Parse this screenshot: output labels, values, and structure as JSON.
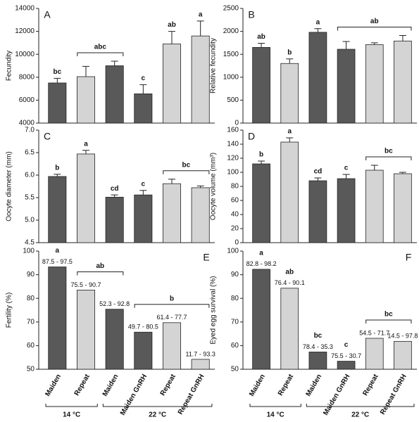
{
  "chart_data": [
    {
      "type": "bar",
      "panel": "A",
      "panel_position": "left",
      "y_label": "Fecundity",
      "categories": [
        null,
        null,
        null,
        null,
        null,
        null
      ],
      "values": [
        7500,
        8050,
        9000,
        6550,
        10900,
        11600
      ],
      "errors": [
        400,
        900,
        400,
        800,
        1100,
        1300
      ],
      "colors": [
        "#595959",
        "#d4d4d4",
        "#595959",
        "#595959",
        "#d4d4d4",
        "#d4d4d4"
      ],
      "letters": [
        "bc",
        null,
        null,
        "c",
        "ab",
        "a"
      ],
      "brackets": [
        {
          "from": 1,
          "to": 2,
          "label": "abc"
        }
      ],
      "ylim": [
        4000,
        14000
      ],
      "yticks": [
        4000,
        6000,
        8000,
        10000,
        12000,
        14000
      ]
    },
    {
      "type": "bar",
      "panel": "B",
      "panel_position": "left",
      "y_label": "Relative fecundity",
      "categories": [
        null,
        null,
        null,
        null,
        null,
        null
      ],
      "values": [
        1650,
        1300,
        1980,
        1610,
        1710,
        1790
      ],
      "errors": [
        90,
        100,
        80,
        170,
        40,
        120
      ],
      "colors": [
        "#595959",
        "#d4d4d4",
        "#595959",
        "#595959",
        "#d4d4d4",
        "#d4d4d4"
      ],
      "letters": [
        "ab",
        "b",
        "a",
        null,
        null,
        null
      ],
      "brackets": [
        {
          "from": 3,
          "to": 5,
          "label": "ab"
        }
      ],
      "ylim": [
        0,
        2500
      ],
      "yticks": [
        0,
        500,
        1000,
        1500,
        2000,
        2500
      ]
    },
    {
      "type": "bar",
      "panel": "C",
      "panel_position": "left",
      "y_label": "Oocyte diameter (mm)",
      "categories": [
        null,
        null,
        null,
        null,
        null,
        null
      ],
      "values": [
        5.97,
        6.47,
        5.51,
        5.56,
        5.81,
        5.72
      ],
      "errors": [
        0.05,
        0.08,
        0.05,
        0.1,
        0.1,
        0.04
      ],
      "colors": [
        "#595959",
        "#d4d4d4",
        "#595959",
        "#595959",
        "#d4d4d4",
        "#d4d4d4"
      ],
      "letters": [
        "b",
        "a",
        "cd",
        "c",
        null,
        null
      ],
      "brackets": [
        {
          "from": 4,
          "to": 5,
          "label": "bc"
        }
      ],
      "ylim": [
        4.5,
        7.0
      ],
      "yticks": [
        4.5,
        {
          "value": 5,
          "label": "5.0"
        },
        5.5,
        {
          "value": 6,
          "label": "6.0"
        },
        6.5,
        {
          "value": 7,
          "label": "7.0"
        }
      ]
    },
    {
      "type": "bar",
      "panel": "D",
      "panel_position": "left",
      "y_label": "Oocyte volume (mm³)",
      "categories": [
        null,
        null,
        null,
        null,
        null,
        null
      ],
      "values": [
        112,
        143,
        88,
        91,
        103,
        98
      ],
      "errors": [
        4,
        6,
        4,
        6,
        7,
        2
      ],
      "colors": [
        "#595959",
        "#d4d4d4",
        "#595959",
        "#595959",
        "#d4d4d4",
        "#d4d4d4"
      ],
      "letters": [
        "b",
        "a",
        "cd",
        "c",
        null,
        null
      ],
      "brackets": [
        {
          "from": 4,
          "to": 5,
          "label": "bc"
        }
      ],
      "ylim": [
        0,
        160
      ],
      "yticks": [
        0,
        20,
        40,
        60,
        80,
        100,
        120,
        140,
        160
      ]
    },
    {
      "type": "bar",
      "panel": "E",
      "panel_position": "right",
      "y_label": "Fertility (%)",
      "categories": [
        "Maiden",
        "Repeat",
        "Maiden",
        "Maiden GnRH",
        "Repeat",
        "Repeat GnRH"
      ],
      "values": [
        93.3,
        83.5,
        75.4,
        65.7,
        69.7,
        54.2
      ],
      "ranges": [
        "87.5 - 97.5",
        "75.5 - 90.7",
        "52.3 - 92.8",
        "49.7 - 80.5",
        "61.4 - 77.7",
        "11.7 - 93.3"
      ],
      "colors": [
        "#595959",
        "#d4d4d4",
        "#595959",
        "#595959",
        "#d4d4d4",
        "#d4d4d4"
      ],
      "letters": [
        "a",
        null,
        null,
        null,
        null,
        null
      ],
      "brackets": [
        {
          "from": 1,
          "to": 2,
          "label": "ab"
        },
        {
          "from": 3,
          "to": 5,
          "label": "b"
        }
      ],
      "groups": [
        {
          "label": "14 °C",
          "from": 0,
          "to": 1
        },
        {
          "label": "22 °C",
          "from": 2,
          "to": 5
        }
      ],
      "ylim": [
        50,
        100
      ],
      "yticks": [
        50,
        60,
        70,
        80,
        90,
        100
      ]
    },
    {
      "type": "bar",
      "panel": "F",
      "panel_position": "right",
      "y_label": "Eyed egg survival (%)",
      "categories": [
        "Maiden",
        "Repeat",
        "Maiden",
        "Maiden GnRH",
        "Repeat",
        "Repeat GnRH"
      ],
      "values": [
        92.3,
        84.3,
        57.3,
        53.4,
        63.1,
        61.8
      ],
      "ranges": [
        "82.8 - 98.2",
        "76.4 - 90.1",
        "78.4 - 35.3",
        "75.5 - 30.7",
        "54.5 - 71.7",
        "14.5 - 97.8"
      ],
      "colors": [
        "#595959",
        "#d4d4d4",
        "#595959",
        "#595959",
        "#d4d4d4",
        "#d4d4d4"
      ],
      "letters": [
        "a",
        "ab",
        "bc",
        "c",
        null,
        null
      ],
      "brackets": [
        {
          "from": 4,
          "to": 5,
          "label": "bc"
        }
      ],
      "groups": [
        {
          "label": "14 °C",
          "from": 0,
          "to": 1
        },
        {
          "label": "22 °C",
          "from": 2,
          "to": 5
        }
      ],
      "ylim": [
        50,
        100
      ],
      "yticks": [
        50,
        60,
        70,
        80,
        90,
        100
      ]
    }
  ]
}
